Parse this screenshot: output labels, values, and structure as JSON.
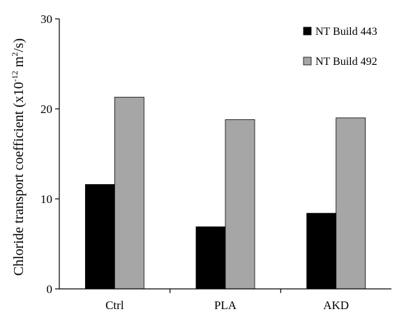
{
  "chart_data": {
    "type": "bar",
    "categories": [
      "Ctrl",
      "PLA",
      "AKD"
    ],
    "series": [
      {
        "name": "NT Build 443",
        "values": [
          11.6,
          6.9,
          8.4
        ],
        "color": "#000000"
      },
      {
        "name": "NT Build 492",
        "values": [
          21.3,
          18.8,
          19.0
        ],
        "color": "#a6a6a6"
      }
    ],
    "ylabel": {
      "prefix": "Chloride transport coefficient (x10",
      "exp1": "-12",
      "mid": " m",
      "exp2": "2",
      "suffix": "/s)"
    },
    "xlabel": "",
    "ylim": [
      0,
      30
    ],
    "yticks": [
      0,
      10,
      20,
      30
    ],
    "grid": false,
    "legend_position": "top-right"
  }
}
